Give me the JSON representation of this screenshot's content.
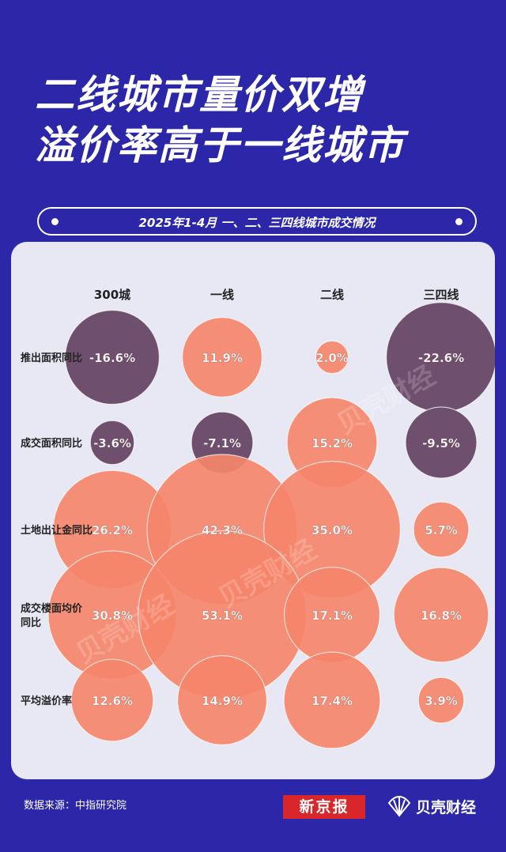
{
  "title": {
    "line1": "二线城市量价双增",
    "line2": "溢价率高于一线城市"
  },
  "subtitle": "2025年1-4月 一、二、三四线城市成交情况",
  "chart_data": {
    "type": "bubble",
    "columns": [
      "300城",
      "一线",
      "二线",
      "三四线"
    ],
    "rows": [
      "推出面积同比",
      "成交面积同比",
      "土地出让金同比",
      "成交楼面均价同比",
      "平均溢价率"
    ],
    "row_label_lines": [
      [
        "推出面积同比"
      ],
      [
        "成交面积同比"
      ],
      [
        "土地出让金同比"
      ],
      [
        "成交楼面均价",
        "同比"
      ],
      [
        "平均溢价率"
      ]
    ],
    "values": [
      [
        -16.6,
        11.9,
        2.0,
        -22.6
      ],
      [
        -3.6,
        -7.1,
        15.2,
        -9.5
      ],
      [
        26.2,
        42.3,
        35.0,
        5.7
      ],
      [
        30.8,
        53.1,
        17.1,
        16.8
      ],
      [
        12.6,
        14.9,
        17.4,
        3.9
      ]
    ],
    "value_labels": [
      [
        "-16.6%",
        "11.9%",
        "2.0%",
        "-22.6%"
      ],
      [
        "-3.6%",
        "-7.1%",
        "15.2%",
        "-9.5%"
      ],
      [
        "26.2%",
        "42.3%",
        "35.0%",
        "5.7%"
      ],
      [
        "30.8%",
        "53.1%",
        "17.1%",
        "16.8%"
      ],
      [
        "12.6%",
        "14.9%",
        "17.4%",
        "3.9%"
      ]
    ],
    "colors": {
      "positive": "#f4866a",
      "negative": "#6e4f6e",
      "panel": "#e8e8f4",
      "background": "#2b27a8"
    }
  },
  "footer": {
    "source": "数据来源：中指研究院",
    "logo1": "新京报",
    "logo2": "贝壳财经"
  },
  "watermarks": [
    "贝壳财经",
    "贝壳财经",
    "贝壳财经"
  ]
}
